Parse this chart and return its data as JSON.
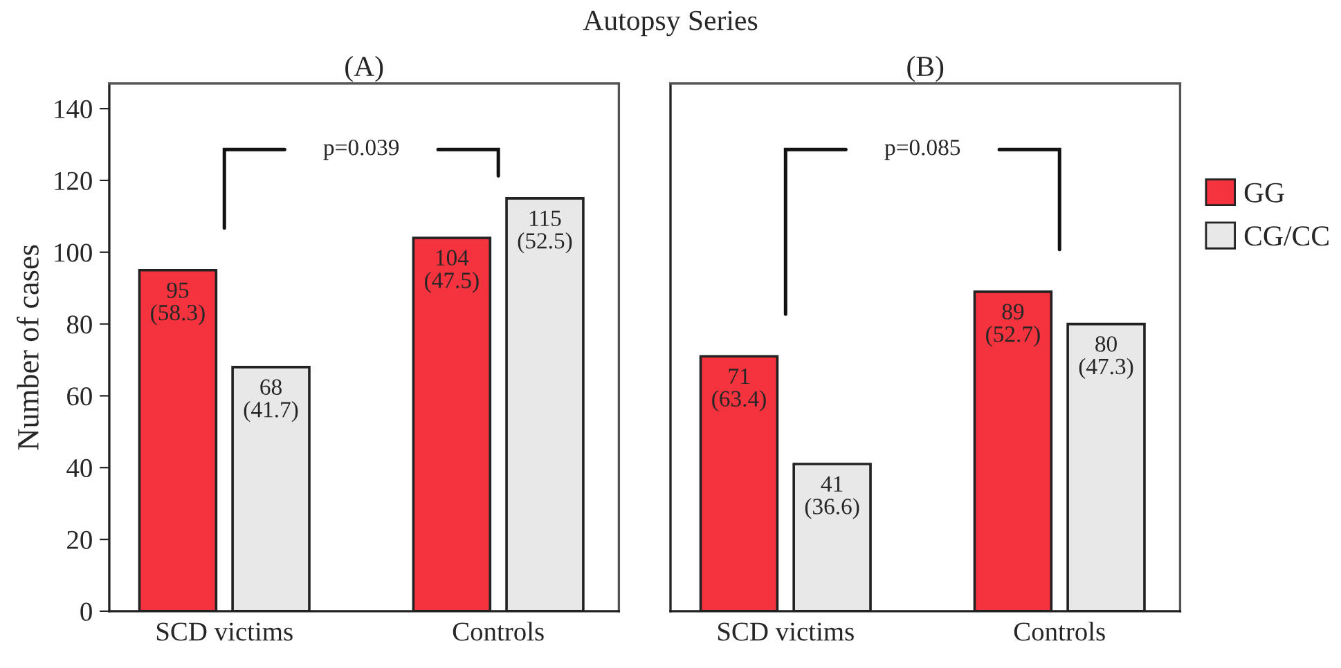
{
  "chart_data": [
    {
      "type": "bar",
      "title": "Autopsy Series",
      "subtitle": "(A)",
      "ylabel": "Number of cases",
      "categories": [
        "SCD victims",
        "Controls"
      ],
      "ylim": [
        0,
        147
      ],
      "yticks": [
        0,
        20,
        40,
        60,
        80,
        100,
        120,
        140
      ],
      "grid": false,
      "annotations": [
        "p=0.039"
      ],
      "series": [
        {
          "color": "#f5333f",
          "values": [
            95,
            104
          ],
          "value_labels": [
            "95\n(58.3)",
            "104\n(47.5)"
          ]
        },
        {
          "color": "#e8e8e8",
          "values": [
            68,
            115
          ],
          "value_labels": [
            "68\n(41.7)",
            "115\n(52.5)"
          ]
        }
      ]
    },
    {
      "type": "bar",
      "subtitle": "(B)",
      "categories": [
        "SCD victims",
        "Controls"
      ],
      "ylim": [
        0,
        147
      ],
      "tick_labels": "x",
      "grid": false,
      "legend": "right",
      "annotations": [
        "p=0.085"
      ],
      "series": [
        {
          "name": "GG",
          "color": "#f5333f",
          "values": [
            71,
            89
          ],
          "value_labels": [
            "71\n(63.4)",
            "89\n(52.7)"
          ]
        },
        {
          "name": "CG/CC",
          "color": "#e8e8e8",
          "values": [
            41,
            80
          ],
          "value_labels": [
            "41\n(36.6)",
            "80\n(47.3)"
          ]
        }
      ]
    }
  ]
}
